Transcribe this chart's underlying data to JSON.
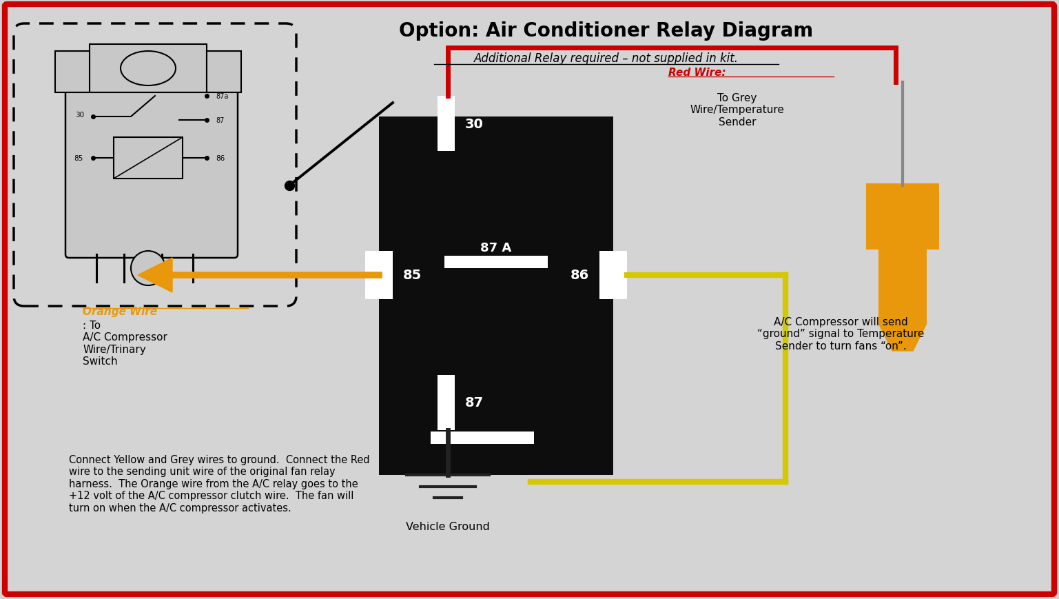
{
  "title": "Option: Air Conditioner Relay Diagram",
  "subtitle": "Additional Relay required – not supplied in kit.",
  "bg_color": "#d4d4d4",
  "border_color": "#cc0000",
  "relay_box_color": "#0d0d0d",
  "orange_color": "#e8980a",
  "red_color": "#cc0000",
  "yellow_color": "#d4c800",
  "black_wire_color": "#222222",
  "white_color": "#ffffff",
  "text_red_wire": "Red Wire:",
  "text_red_desc": "To Grey\nWire/Temperature\nSender",
  "text_orange_wire": "Orange Wire",
  "text_orange_desc": ": To\nA/C Compressor\nWire/Trinary\nSwitch",
  "text_ac": "A/C Compressor will send\n“ground” signal to Temperature\nSender to turn fans “on”.",
  "text_vehicle_ground": "Vehicle Ground",
  "text_bottom": "Connect Yellow and Grey wires to ground.  Connect the Red\nwire to the sending unit wire of the original fan relay\nharness.  The Orange wire from the A/C relay goes to the\n+12 volt of the A/C compressor clutch wire.  The fan will\nturn on when the A/C compressor activates."
}
